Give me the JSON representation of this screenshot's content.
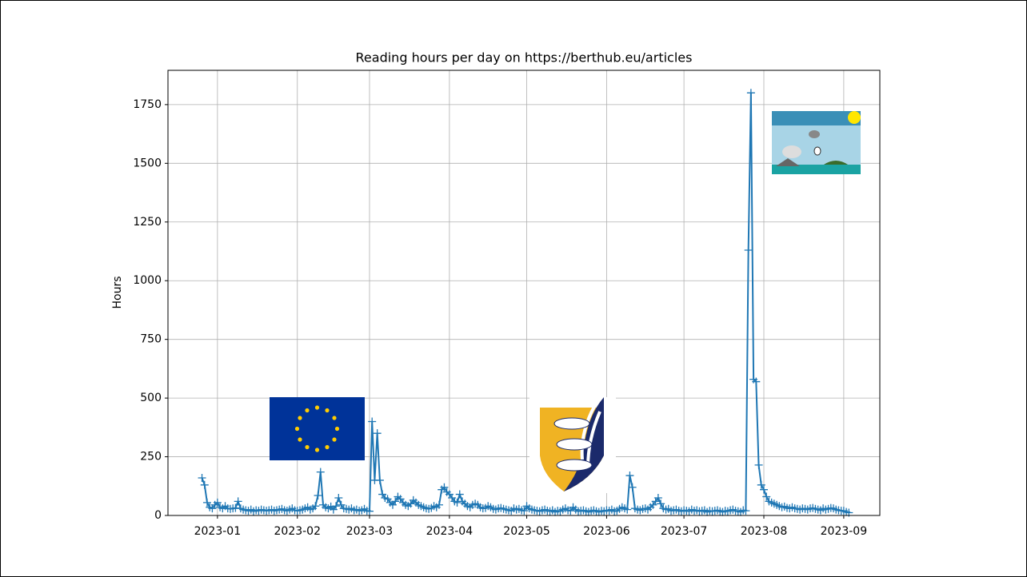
{
  "chart_data": {
    "type": "line",
    "title": "Reading hours per day on https://berthub.eu/articles",
    "ylabel": "Hours",
    "color": "#1f77b4",
    "marker": "+",
    "grid": true,
    "xlim": [
      19338.8,
      19615
    ],
    "ylim": [
      0,
      1896
    ],
    "xticks": [
      {
        "value": 19358,
        "label": "2023-01"
      },
      {
        "value": 19389,
        "label": "2023-02"
      },
      {
        "value": 19417,
        "label": "2023-03"
      },
      {
        "value": 19448,
        "label": "2023-04"
      },
      {
        "value": 19478,
        "label": "2023-05"
      },
      {
        "value": 19509,
        "label": "2023-06"
      },
      {
        "value": 19539,
        "label": "2023-07"
      },
      {
        "value": 19570,
        "label": "2023-08"
      },
      {
        "value": 19601,
        "label": "2023-09"
      }
    ],
    "yticks": [
      0,
      250,
      500,
      750,
      1000,
      1250,
      1500,
      1750
    ],
    "x": [
      19352,
      19353,
      19354,
      19355,
      19356,
      19357,
      19358,
      19359,
      19360,
      19361,
      19362,
      19363,
      19364,
      19365,
      19366,
      19367,
      19368,
      19369,
      19370,
      19371,
      19372,
      19373,
      19374,
      19375,
      19376,
      19377,
      19378,
      19379,
      19380,
      19381,
      19382,
      19383,
      19384,
      19385,
      19386,
      19387,
      19388,
      19389,
      19390,
      19391,
      19392,
      19393,
      19394,
      19395,
      19396,
      19397,
      19398,
      19399,
      19400,
      19401,
      19402,
      19403,
      19404,
      19405,
      19406,
      19407,
      19408,
      19409,
      19410,
      19411,
      19412,
      19413,
      19414,
      19415,
      19416,
      19417,
      19418,
      19419,
      19420,
      19421,
      19422,
      19423,
      19424,
      19425,
      19426,
      19427,
      19428,
      19429,
      19430,
      19431,
      19432,
      19433,
      19434,
      19435,
      19436,
      19437,
      19438,
      19439,
      19440,
      19441,
      19442,
      19443,
      19444,
      19445,
      19446,
      19447,
      19448,
      19449,
      19450,
      19451,
      19452,
      19453,
      19454,
      19455,
      19456,
      19457,
      19458,
      19459,
      19460,
      19461,
      19462,
      19463,
      19464,
      19465,
      19466,
      19467,
      19468,
      19469,
      19470,
      19471,
      19472,
      19473,
      19474,
      19475,
      19476,
      19477,
      19478,
      19479,
      19480,
      19481,
      19482,
      19483,
      19484,
      19485,
      19486,
      19487,
      19488,
      19489,
      19490,
      19491,
      19492,
      19493,
      19494,
      19495,
      19496,
      19497,
      19498,
      19499,
      19500,
      19501,
      19502,
      19503,
      19504,
      19505,
      19506,
      19507,
      19508,
      19509,
      19510,
      19511,
      19512,
      19513,
      19514,
      19515,
      19516,
      19517,
      19518,
      19519,
      19520,
      19521,
      19522,
      19523,
      19524,
      19525,
      19526,
      19527,
      19528,
      19529,
      19530,
      19531,
      19532,
      19533,
      19534,
      19535,
      19536,
      19537,
      19538,
      19539,
      19540,
      19541,
      19542,
      19543,
      19544,
      19545,
      19546,
      19547,
      19548,
      19549,
      19550,
      19551,
      19552,
      19553,
      19554,
      19555,
      19556,
      19557,
      19558,
      19559,
      19560,
      19561,
      19562,
      19563,
      19564,
      19565,
      19566,
      19567,
      19568,
      19569,
      19570,
      19571,
      19572,
      19573,
      19574,
      19575,
      19576,
      19577,
      19578,
      19579,
      19580,
      19581,
      19582,
      19583,
      19584,
      19585,
      19586,
      19587,
      19588,
      19589,
      19590,
      19591,
      19592,
      19593,
      19594,
      19595,
      19596,
      19597,
      19598,
      19599,
      19600,
      19601,
      19602,
      19603
    ],
    "values": [
      160,
      130,
      55,
      35,
      30,
      45,
      55,
      35,
      30,
      40,
      30,
      28,
      30,
      32,
      60,
      30,
      25,
      22,
      20,
      25,
      18,
      22,
      20,
      25,
      22,
      20,
      22,
      25,
      20,
      22,
      25,
      28,
      22,
      20,
      25,
      30,
      22,
      20,
      22,
      25,
      30,
      35,
      25,
      30,
      40,
      85,
      185,
      45,
      35,
      30,
      38,
      25,
      40,
      75,
      45,
      30,
      28,
      25,
      30,
      22,
      25,
      20,
      22,
      28,
      20,
      18,
      400,
      150,
      350,
      150,
      90,
      75,
      70,
      55,
      45,
      60,
      80,
      70,
      55,
      45,
      40,
      50,
      65,
      55,
      45,
      40,
      35,
      30,
      28,
      32,
      40,
      35,
      45,
      110,
      120,
      100,
      90,
      75,
      60,
      55,
      90,
      60,
      50,
      40,
      35,
      45,
      50,
      45,
      35,
      30,
      32,
      40,
      35,
      28,
      25,
      30,
      32,
      28,
      25,
      22,
      20,
      30,
      25,
      28,
      22,
      20,
      40,
      30,
      25,
      22,
      20,
      18,
      22,
      25,
      20,
      18,
      22,
      15,
      20,
      18,
      25,
      30,
      22,
      20,
      35,
      25,
      18,
      20,
      22,
      18,
      15,
      20,
      22,
      18,
      15,
      20,
      18,
      22,
      20,
      25,
      18,
      20,
      28,
      35,
      30,
      25,
      170,
      120,
      30,
      25,
      22,
      28,
      30,
      25,
      35,
      45,
      60,
      75,
      50,
      30,
      25,
      28,
      20,
      22,
      25,
      20,
      18,
      22,
      20,
      18,
      25,
      20,
      22,
      18,
      20,
      22,
      15,
      20,
      18,
      20,
      22,
      18,
      15,
      20,
      18,
      22,
      25,
      20,
      18,
      15,
      22,
      20,
      1130,
      1800,
      580,
      570,
      215,
      130,
      110,
      80,
      60,
      55,
      50,
      45,
      40,
      35,
      38,
      32,
      30,
      35,
      30,
      28,
      25,
      30,
      28,
      25,
      30,
      32,
      28,
      25,
      22,
      30,
      25,
      28,
      32,
      30,
      25,
      22,
      20,
      20,
      15,
      12
    ]
  }
}
